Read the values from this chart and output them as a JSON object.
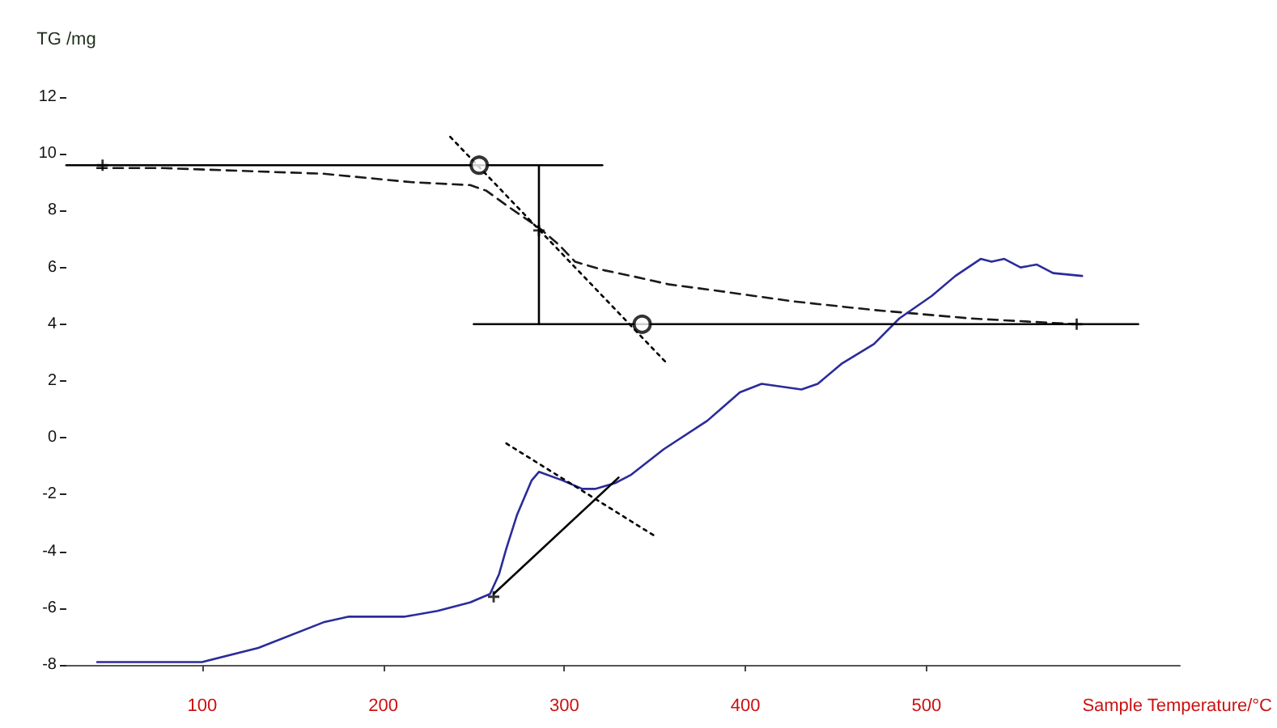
{
  "chart_data": {
    "type": "line",
    "ylabel": "TG /mg",
    "xlabel": "Sample Temperature/°C",
    "xlim": [
      25,
      640
    ],
    "xticks": [
      100,
      200,
      300,
      400,
      500
    ],
    "ylim": [
      -8,
      12
    ],
    "yticks": [
      -8,
      -6,
      -4,
      -2,
      0,
      2,
      4,
      6,
      8,
      10,
      12
    ],
    "marker": "none",
    "line_style": "solid",
    "series": [
      {
        "color": "#1a1a1a",
        "line_style": "dashed",
        "x": [
          42,
          78,
          122,
          167,
          216,
          248,
          257,
          270,
          286,
          297,
          306,
          322,
          337,
          358,
          382,
          427,
          471,
          525,
          583
        ],
        "values": [
          9.5,
          9.5,
          9.4,
          9.3,
          9.0,
          8.9,
          8.7,
          8.1,
          7.4,
          6.8,
          6.2,
          5.9,
          5.7,
          5.4,
          5.2,
          4.8,
          4.5,
          4.2,
          4.0
        ]
      },
      {
        "color": "#2b2b9b",
        "x": [
          42,
          100,
          131,
          167,
          181,
          212,
          230,
          248,
          259,
          264,
          268,
          274,
          282,
          286,
          299,
          310,
          317,
          328,
          337,
          355,
          379,
          397,
          409,
          431,
          440,
          453,
          471,
          485,
          503,
          516,
          530,
          536,
          543,
          552,
          561,
          570,
          586
        ],
        "values": [
          -7.9,
          -7.9,
          -7.4,
          -6.5,
          -6.3,
          -6.3,
          -6.1,
          -5.8,
          -5.5,
          -4.8,
          -3.9,
          -2.7,
          -1.5,
          -1.2,
          -1.5,
          -1.8,
          -1.8,
          -1.6,
          -1.3,
          -0.4,
          0.6,
          1.6,
          1.9,
          1.7,
          1.9,
          2.6,
          3.3,
          4.2,
          5.0,
          5.7,
          6.3,
          6.2,
          6.3,
          6.0,
          6.1,
          5.8,
          5.7
        ]
      },
      {
        "color": "#000000",
        "x": [
          25,
          321
        ],
        "values": [
          9.6,
          9.6
        ]
      },
      {
        "color": "#000000",
        "x": [
          250,
          617
        ],
        "values": [
          4.0,
          4.0
        ]
      },
      {
        "color": "#000000",
        "x": [
          286,
          286
        ],
        "values": [
          9.6,
          4.0
        ]
      },
      {
        "color": "#000000",
        "line_style": "dotted",
        "x": [
          237,
          357
        ],
        "values": [
          10.6,
          2.6
        ]
      },
      {
        "color": "#000000",
        "line_style": "dotted",
        "x": [
          268,
          351
        ],
        "values": [
          -0.2,
          -3.5
        ]
      },
      {
        "color": "#000000",
        "x": [
          261,
          330
        ],
        "values": [
          -5.5,
          -1.4
        ]
      },
      {
        "type": "scatter",
        "marker": "circle",
        "color": "#000000",
        "x": [
          253,
          343
        ],
        "values": [
          9.6,
          4.0
        ]
      },
      {
        "type": "scatter",
        "marker": "cross",
        "color": "#000000",
        "x": [
          45,
          583,
          286,
          261
        ],
        "values": [
          9.6,
          4.0,
          7.3,
          -5.6
        ]
      }
    ]
  }
}
